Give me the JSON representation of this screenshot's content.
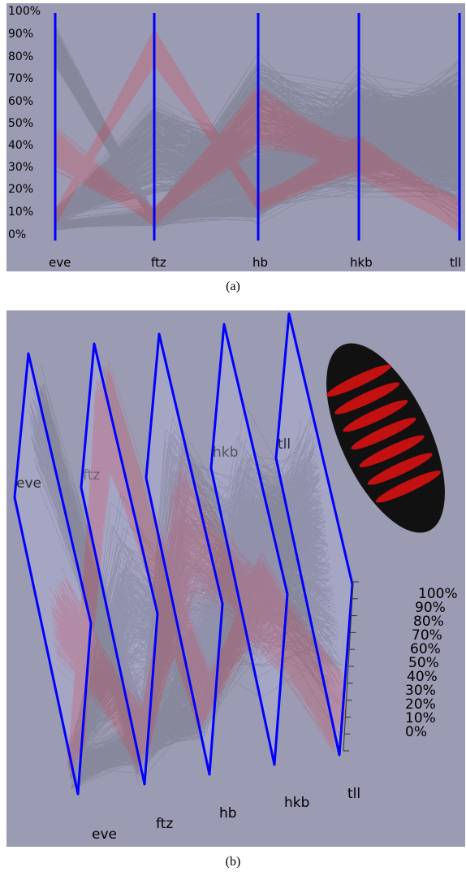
{
  "panel_a": {
    "caption": "(a)",
    "y_ticks": [
      "100%",
      "90%",
      "80%",
      "70%",
      "60%",
      "50%",
      "40%",
      "30%",
      "20%",
      "10%",
      "0%"
    ],
    "axes": [
      "eve",
      "ftz",
      "hb",
      "hkb",
      "tll"
    ]
  },
  "panel_b": {
    "caption": "(b)",
    "axes": [
      "eve",
      "ftz",
      "hb",
      "hkb",
      "tll"
    ],
    "plane_labels": [
      "eve",
      "ftz",
      "hkb",
      "tll"
    ],
    "pct_ticks": [
      "100%",
      "90%",
      "80%",
      "70%",
      "60%",
      "50%",
      "40%",
      "30%",
      "20%",
      "10%",
      "0%"
    ]
  },
  "colors": {
    "background": "#9b9bb3",
    "axis": "#0000ff",
    "highlight_lines": "#ff0000",
    "context_lines": "#000000",
    "embryo": "#111111",
    "embryo_stripes": "#e31010"
  }
}
